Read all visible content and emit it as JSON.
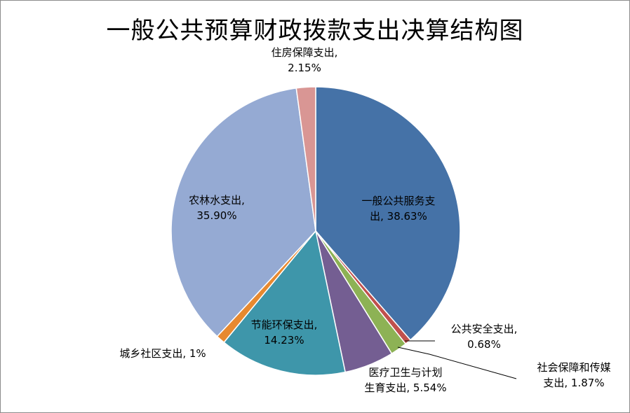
{
  "chart_data": {
    "type": "pie",
    "title": "一般公共预算财政拨款支出决算结构图",
    "slices": [
      {
        "name": "一般公共服务支出",
        "label_lines": [
          "一般公共服务支",
          "出, 38.63%"
        ],
        "value": 38.63,
        "color": "#4572A7"
      },
      {
        "name": "公共安全支出",
        "label_lines": [
          "公共安全支出,",
          "0.68%"
        ],
        "value": 0.68,
        "color": "#C0504D"
      },
      {
        "name": "社会保障和传媒支出",
        "label_lines": [
          "社会保障和传媒",
          "支出, 1.87%"
        ],
        "value": 1.87,
        "color": "#8DB255"
      },
      {
        "name": "医疗卫生与计划生育支出",
        "label_lines": [
          "医疗卫生与计划",
          "生育支出, 5.54%"
        ],
        "value": 5.54,
        "color": "#745E92"
      },
      {
        "name": "节能环保支出",
        "label_lines": [
          "节能环保支出,",
          "14.23%"
        ],
        "value": 14.23,
        "color": "#3E96AA"
      },
      {
        "name": "城乡社区支出",
        "label_lines": [
          "城乡社区支出, 1%"
        ],
        "value": 1.0,
        "color": "#E7892F"
      },
      {
        "name": "农林水支出",
        "label_lines": [
          "农林水支出,",
          "35.90%"
        ],
        "value": 35.9,
        "color": "#95AAD3"
      },
      {
        "name": "住房保障支出",
        "label_lines": [
          "住房保障支出,",
          "2.15%"
        ],
        "value": 2.15,
        "color": "#D99694"
      }
    ],
    "start_angle": "12 o'clock",
    "direction": "clockwise",
    "legend": "none"
  }
}
